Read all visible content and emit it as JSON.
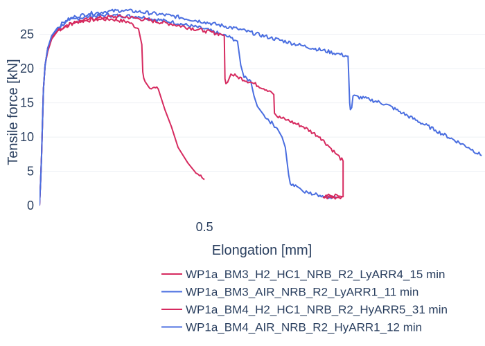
{
  "chart_data": {
    "type": "line",
    "title": "",
    "xlabel": "Elongation [mm]",
    "ylabel": "Tensile force [kN]",
    "xlim": [
      0,
      1.35
    ],
    "ylim": [
      -1.5,
      29
    ],
    "x_ticks": [
      {
        "value": 0.5,
        "label": "0.5"
      }
    ],
    "y_ticks": [
      {
        "value": 0,
        "label": "0"
      },
      {
        "value": 5,
        "label": "5"
      },
      {
        "value": 10,
        "label": "10"
      },
      {
        "value": 15,
        "label": "15"
      },
      {
        "value": 20,
        "label": "20"
      },
      {
        "value": 25,
        "label": "25"
      }
    ],
    "grid": "horizontal",
    "legend_position": "bottom-right",
    "series": [
      {
        "name": "WP1a_BM3_H2_HC1_NRB_R2_LyARR4_15 min",
        "color": "#d62a5f",
        "x": [
          0,
          0.003,
          0.006,
          0.009,
          0.012,
          0.017,
          0.025,
          0.037,
          0.055,
          0.08,
          0.11,
          0.14,
          0.18,
          0.22,
          0.27,
          0.3,
          0.31,
          0.313,
          0.316,
          0.32,
          0.33,
          0.36,
          0.38,
          0.4,
          0.42,
          0.45,
          0.47,
          0.5
        ],
        "y": [
          0,
          3,
          7,
          12,
          17,
          20.5,
          22.5,
          24.3,
          25.5,
          26.3,
          26.8,
          27.0,
          27.2,
          27.2,
          26.8,
          25.8,
          23.5,
          19.5,
          18.6,
          18.1,
          17.4,
          17.0,
          14.0,
          11.5,
          8.5,
          6.2,
          5.0,
          3.8
        ]
      },
      {
        "name": "WP1a_BM3_AIR_NRB_R2_LyARR1_11 min",
        "color": "#4a6ee0",
        "x": [
          0,
          0.003,
          0.006,
          0.009,
          0.012,
          0.017,
          0.025,
          0.037,
          0.055,
          0.08,
          0.11,
          0.15,
          0.2,
          0.3,
          0.4,
          0.5,
          0.55,
          0.58,
          0.6,
          0.61,
          0.62,
          0.64,
          0.65,
          0.66,
          0.68,
          0.72,
          0.735,
          0.745,
          0.75,
          0.755,
          0.76,
          0.78,
          0.79,
          0.8,
          0.85,
          0.88,
          0.9
        ],
        "y": [
          0,
          3,
          7,
          12,
          17,
          20.5,
          23,
          24.5,
          25.8,
          26.8,
          27.3,
          27.6,
          27.8,
          27.6,
          26.8,
          25.8,
          25.0,
          24.5,
          24.0,
          20.5,
          18.7,
          18.2,
          16.0,
          14.5,
          13.2,
          11.3,
          10.0,
          8.5,
          6.5,
          4.5,
          3.2,
          2.8,
          2.5,
          2.0,
          1.5,
          1.3,
          1.2
        ]
      },
      {
        "name": "WP1a_BM4_H2_HC1_NRB_R2_HyARR5_31 min",
        "color": "#d62a5f",
        "x": [
          0,
          0.003,
          0.006,
          0.009,
          0.012,
          0.017,
          0.025,
          0.037,
          0.055,
          0.08,
          0.11,
          0.15,
          0.2,
          0.25,
          0.3,
          0.4,
          0.5,
          0.55,
          0.56,
          0.562,
          0.565,
          0.57,
          0.58,
          0.6,
          0.65,
          0.7,
          0.71,
          0.712,
          0.72,
          0.75,
          0.8,
          0.85,
          0.88,
          0.9,
          0.92,
          0.92,
          0.905,
          0.88,
          0.86,
          0.9,
          0.92
        ],
        "y": [
          0,
          3,
          7,
          12,
          17,
          20.5,
          23,
          24.5,
          25.5,
          26.2,
          26.8,
          27.2,
          27.5,
          27.6,
          27.3,
          26.5,
          25.5,
          25.0,
          24.8,
          18.5,
          17.8,
          18.0,
          19.2,
          18.8,
          17.8,
          16.7,
          16.2,
          13.5,
          13.0,
          12.5,
          11.5,
          10.0,
          8.5,
          7.5,
          6.5,
          1.3,
          1.4,
          1.5,
          1.2,
          1.2,
          1.3
        ]
      },
      {
        "name": "WP1a_BM4_AIR_NRB_R2_HyARR1_12 min",
        "color": "#4a6ee0",
        "x": [
          0,
          0.003,
          0.006,
          0.009,
          0.012,
          0.017,
          0.025,
          0.037,
          0.055,
          0.08,
          0.11,
          0.15,
          0.2,
          0.25,
          0.3,
          0.4,
          0.5,
          0.6,
          0.7,
          0.8,
          0.9,
          0.935,
          0.94,
          0.942,
          0.946,
          0.95,
          1.0,
          1.05,
          1.1,
          1.2,
          1.3,
          1.34
        ],
        "y": [
          0,
          3,
          7,
          12,
          17,
          20.5,
          23,
          24.8,
          26,
          27,
          27.6,
          28.0,
          28.3,
          28.5,
          28.3,
          27.7,
          26.8,
          25.8,
          24.5,
          23.3,
          22.2,
          21.8,
          15.0,
          14.0,
          14.3,
          16.0,
          15.5,
          14.8,
          13.5,
          11.0,
          8.5,
          7.3
        ]
      }
    ]
  }
}
